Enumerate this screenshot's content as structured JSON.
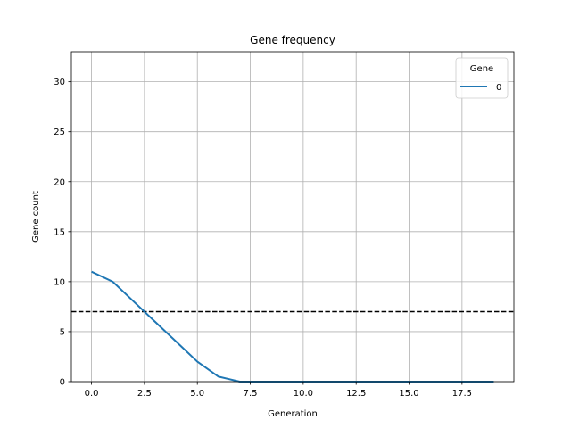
{
  "chart_data": {
    "type": "line",
    "title": "Gene frequency",
    "xlabel": "Generation",
    "ylabel": "Gene count",
    "xlim": [
      -0.95,
      19.95
    ],
    "ylim": [
      0,
      33
    ],
    "x_ticks": [
      0.0,
      2.5,
      5.0,
      7.5,
      10.0,
      12.5,
      15.0,
      17.5
    ],
    "x_tick_labels": [
      "0.0",
      "2.5",
      "5.0",
      "7.5",
      "10.0",
      "12.5",
      "15.0",
      "17.5"
    ],
    "y_ticks": [
      0,
      5,
      10,
      15,
      20,
      25,
      30
    ],
    "y_tick_labels": [
      "0",
      "5",
      "10",
      "15",
      "20",
      "25",
      "30"
    ],
    "grid": true,
    "legend": {
      "title": "Gene",
      "placement": "top-right"
    },
    "series": [
      {
        "name": "0",
        "color": "#1f77b4",
        "x": [
          0,
          1,
          2,
          3,
          4,
          5,
          6,
          7,
          8,
          9,
          10,
          11,
          12,
          13,
          14,
          15,
          16,
          17,
          18,
          19
        ],
        "y": [
          11,
          10,
          8,
          6,
          4,
          2,
          0.5,
          0,
          0,
          0,
          0,
          0,
          0,
          0,
          0,
          0,
          0,
          0,
          0,
          0
        ]
      }
    ],
    "reference_line": {
      "orientation": "horizontal",
      "y": 7,
      "style": "dashed",
      "color": "#000000"
    }
  }
}
